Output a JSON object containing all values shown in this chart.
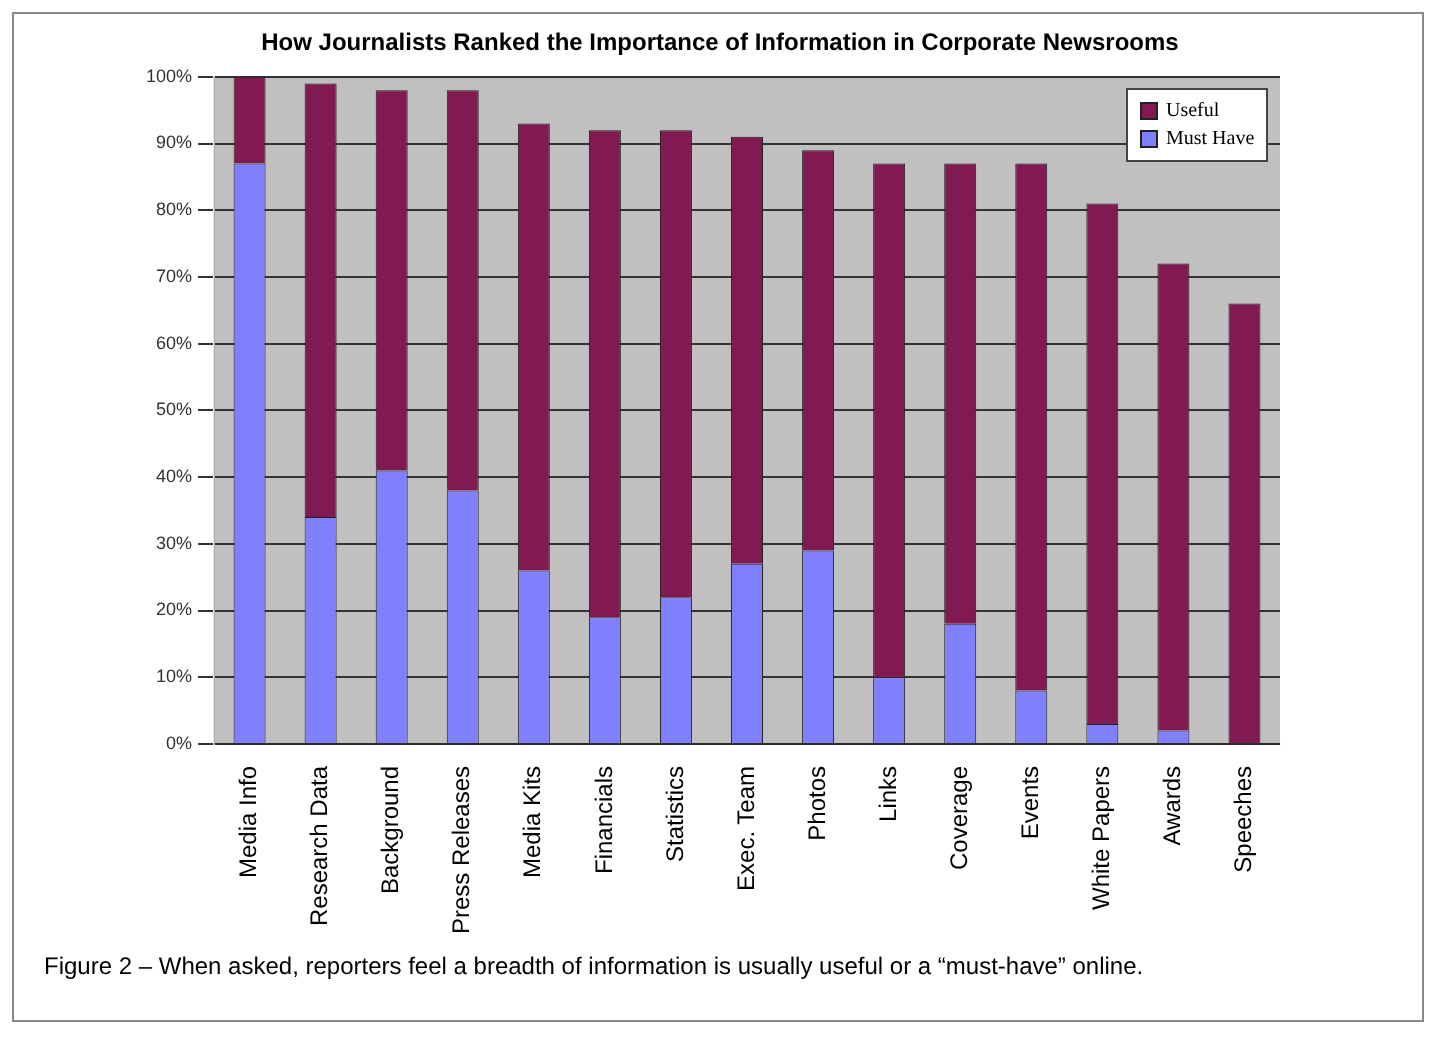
{
  "chart_data": {
    "type": "bar",
    "title": "How Journalists Ranked the Importance of Information in Corporate Newsrooms",
    "categories": [
      "Media Info",
      "Research Data",
      "Background",
      "Press Releases",
      "Media Kits",
      "Financials",
      "Statistics",
      "Exec. Team",
      "Photos",
      "Links",
      "Coverage",
      "Events",
      "White Papers",
      "Awards",
      "Speeches"
    ],
    "stacked": true,
    "series": [
      {
        "name": "Must Have",
        "color": "#8080ff",
        "values": [
          87,
          34,
          41,
          38,
          26,
          19,
          22,
          27,
          29,
          10,
          18,
          8,
          3,
          2,
          0
        ]
      },
      {
        "name": "Useful",
        "color": "#801a50",
        "values": [
          13,
          65,
          57,
          60,
          67,
          73,
          70,
          64,
          60,
          77,
          69,
          79,
          78,
          70,
          66
        ]
      }
    ],
    "ylim": [
      0,
      100
    ],
    "yticks": [
      {
        "value": 0,
        "label": "0%"
      },
      {
        "value": 10,
        "label": "10%"
      },
      {
        "value": 20,
        "label": "20%"
      },
      {
        "value": 30,
        "label": "30%"
      },
      {
        "value": 40,
        "label": "40%"
      },
      {
        "value": 50,
        "label": "50%"
      },
      {
        "value": 60,
        "label": "60%"
      },
      {
        "value": 70,
        "label": "70%"
      },
      {
        "value": 80,
        "label": "80%"
      },
      {
        "value": 90,
        "label": "90%"
      },
      {
        "value": 100,
        "label": "100%"
      }
    ],
    "grid": "y",
    "legend": "top right",
    "annotations": [
      "Figure 2 – When asked, reporters feel a breadth of information is usually useful or a “must-have” online."
    ]
  }
}
